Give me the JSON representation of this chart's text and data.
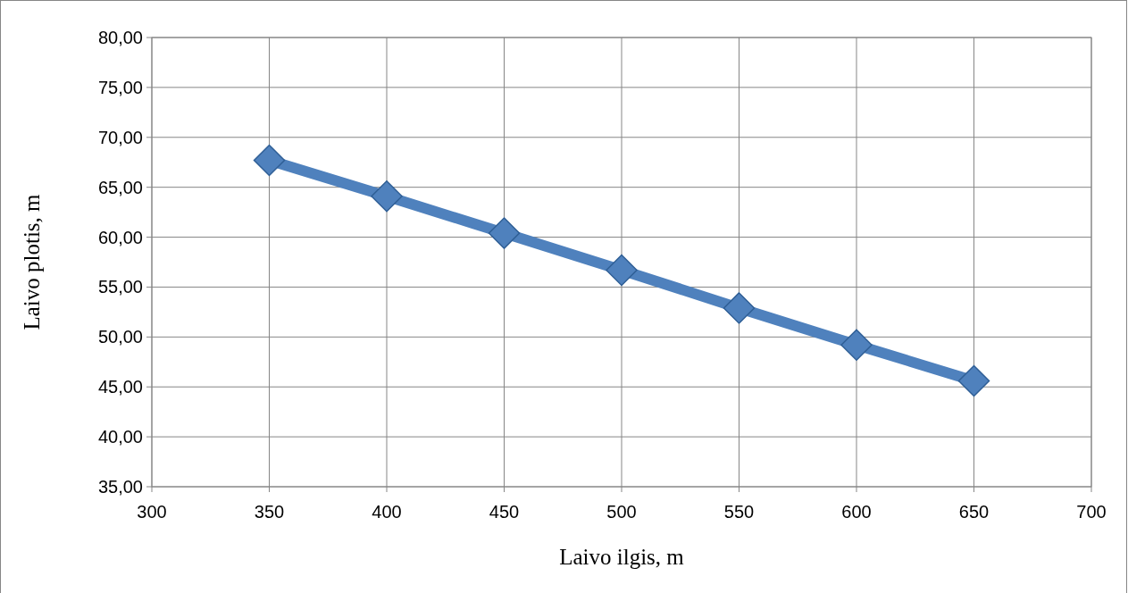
{
  "chart_data": {
    "type": "line",
    "xlabel": "Laivo ilgis, m",
    "ylabel": "Laivo plotis, m",
    "x": [
      350,
      400,
      450,
      500,
      550,
      600,
      650
    ],
    "series": [
      {
        "color": "#4f81bd",
        "values": [
          67.7,
          64.1,
          60.4,
          56.7,
          52.9,
          49.2,
          45.6
        ]
      }
    ],
    "xlim": [
      300,
      700
    ],
    "xticks": [
      300,
      350,
      400,
      450,
      500,
      550,
      600,
      650,
      700
    ],
    "ylim": [
      35,
      80
    ],
    "yticks": [
      {
        "value": 35,
        "label": "35,00"
      },
      {
        "value": 40,
        "label": "40,00"
      },
      {
        "value": 45,
        "label": "45,00"
      },
      {
        "value": 50,
        "label": "50,00"
      },
      {
        "value": 55,
        "label": "55,00"
      },
      {
        "value": 60,
        "label": "60,00"
      },
      {
        "value": 65,
        "label": "65,00"
      },
      {
        "value": 70,
        "label": "70,00"
      },
      {
        "value": 75,
        "label": "75,00"
      },
      {
        "value": 80,
        "label": "80,00"
      }
    ],
    "grid": true,
    "marker": "diamond",
    "line_style": "solid"
  }
}
